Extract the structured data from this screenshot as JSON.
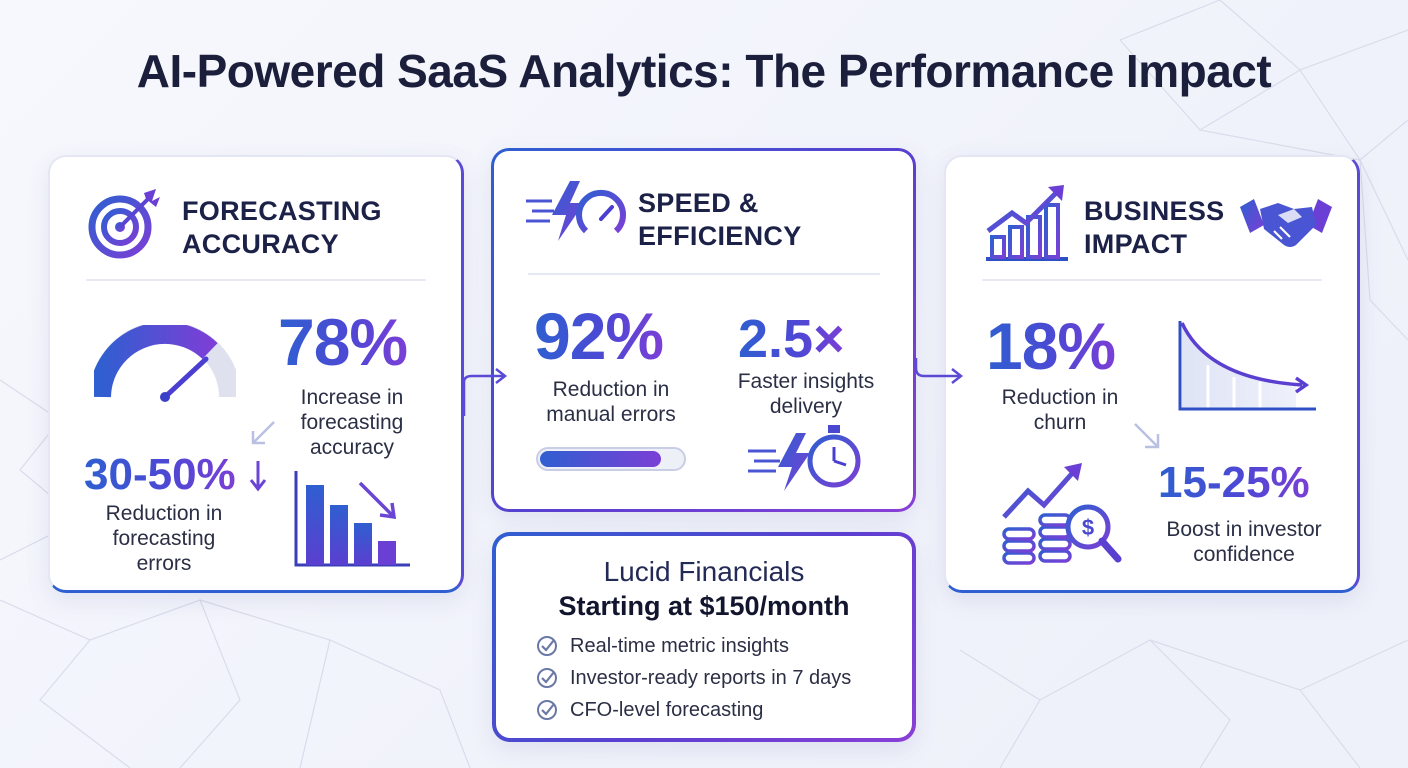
{
  "title": "AI-Powered SaaS Analytics: The Performance Impact",
  "colors": {
    "accent_blue": "#2f5fd0",
    "accent_purple": "#7b3fd6",
    "text_dark": "#1c2147"
  },
  "cards": {
    "forecasting": {
      "title_line1": "FORECASTING",
      "title_line2": "ACCURACY",
      "icon": "target-icon",
      "stat_main": {
        "value": "78%",
        "label_line1": "Increase in",
        "label_line2": "forecasting",
        "label_line3": "accuracy"
      },
      "stat_secondary": {
        "value": "30-50%",
        "label_line1": "Reduction in",
        "label_line2": "forecasting",
        "label_line3": "errors"
      },
      "gauge_level": 0.72
    },
    "speed": {
      "title_line1": "SPEED &",
      "title_line2": "EFFICIENCY",
      "icon": "lightning-speedometer-icon",
      "stat_main": {
        "value": "92%",
        "label_line1": "Reduction in",
        "label_line2": "manual errors"
      },
      "stat_secondary": {
        "value": "2.5×",
        "label_line1": "Faster insights",
        "label_line2": "delivery"
      },
      "progress": 0.85
    },
    "business": {
      "title_line1": "BUSINESS",
      "title_line2": "IMPACT",
      "icon": "growth-chart-icon",
      "stat_main": {
        "value": "18%",
        "label_line1": "Reduction in",
        "label_line2": "churn"
      },
      "stat_secondary": {
        "value": "15-25%",
        "label_line1": "Boost in investor",
        "label_line2": "confidence"
      }
    }
  },
  "promo": {
    "name": "Lucid Financials",
    "price": "Starting at $150/month",
    "features": [
      "Real-time metric insights",
      "Investor-ready reports in 7 days",
      "CFO-level forecasting"
    ]
  }
}
